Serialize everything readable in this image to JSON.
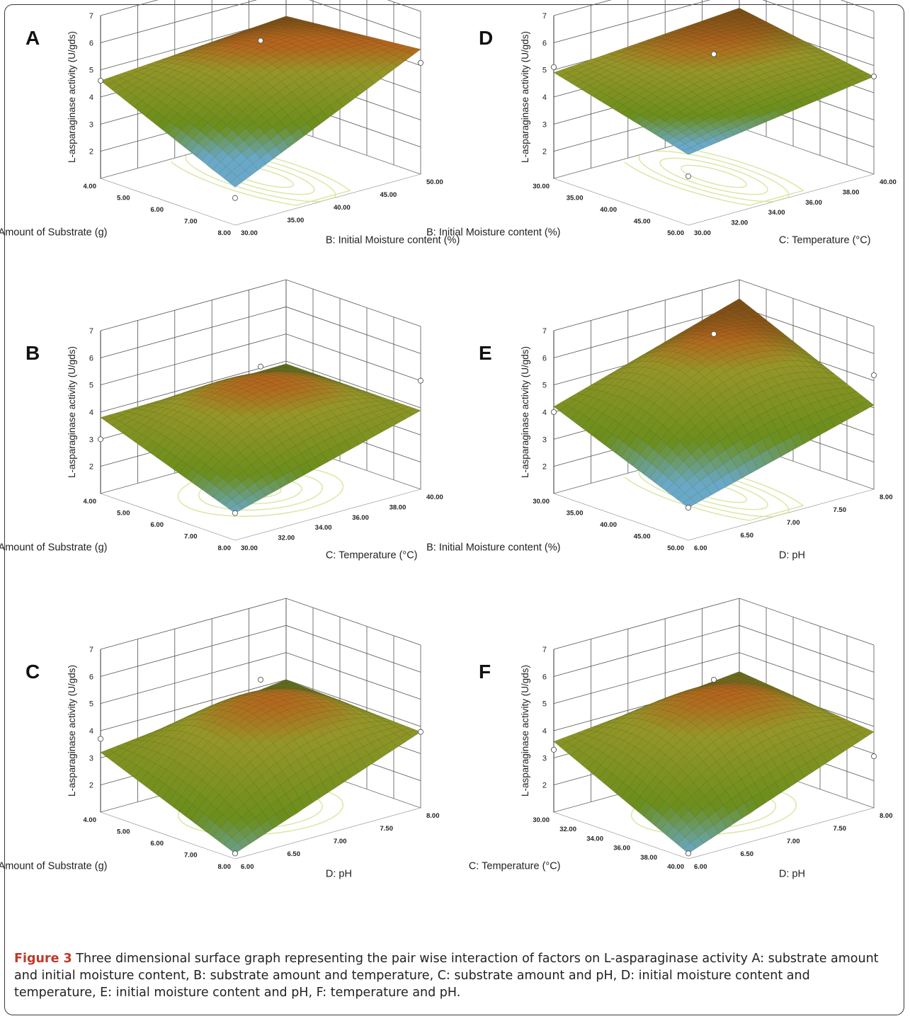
{
  "figure": {
    "caption_label": "Figure 3",
    "caption_text": "Three dimensional surface graph representing the pair wise interaction of factors on L-asparaginase activity A: substrate amount and initial moisture content, B: substrate amount and temperature, C: substrate amount and pH, D: initial moisture content and temperature, E: initial moisture content and pH, F: temperature and pH."
  },
  "colors": {
    "low": "#6aa8c8",
    "mid": "#6b8e1c",
    "high": "#b5651d",
    "dark": "#1c2a0c",
    "contour": "#d8e6a0"
  },
  "chart_data": [
    {
      "panel": "A",
      "type": "surface",
      "zlabel": "L-asparaginase activity (U/gds)",
      "zticks": [
        "2",
        "3",
        "4",
        "5",
        "6",
        "7"
      ],
      "zlim": [
        1,
        7
      ],
      "left_axis": {
        "label": "A: Amount of Substrate (g)",
        "ticks": [
          "4.00",
          "5.00",
          "6.00",
          "7.00",
          "8.00"
        ]
      },
      "right_axis": {
        "label": "B: Initial Moisture content (%)",
        "ticks": [
          "30.00",
          "35.00",
          "40.00",
          "45.00",
          "50.00"
        ]
      },
      "corner_values": [
        4.6,
        2.4,
        5.1,
        5.6
      ],
      "design_points": [
        4.6,
        2.0,
        6.0,
        5.1
      ],
      "color_bias": 0.25
    },
    {
      "panel": "B",
      "type": "surface",
      "zlabel": "L-asparaginase activity (U/gds)",
      "zticks": [
        "2",
        "3",
        "4",
        "5",
        "6",
        "7"
      ],
      "zlim": [
        1,
        7
      ],
      "left_axis": {
        "label": "A: Amount of Substrate (g)",
        "ticks": [
          "4.00",
          "5.00",
          "6.00",
          "7.00",
          "8.00"
        ]
      },
      "right_axis": {
        "label": "C: Temperature (°C)",
        "ticks": [
          "30.00",
          "32.00",
          "34.00",
          "36.00",
          "38.00",
          "40.00"
        ]
      },
      "corner_values": [
        3.8,
        2.0,
        3.9,
        3.9
      ],
      "design_points": [
        3.0,
        2.0,
        5.6,
        5.0
      ],
      "color_bias": 0.0
    },
    {
      "panel": "C",
      "type": "surface",
      "zlabel": "L-asparaginase activity (U/gds)",
      "zticks": [
        "2",
        "3",
        "4",
        "5",
        "6",
        "7"
      ],
      "zlim": [
        1,
        7
      ],
      "left_axis": {
        "label": "A: Amount of Substrate (g)",
        "ticks": [
          "4.00",
          "5.00",
          "6.00",
          "7.00",
          "8.00"
        ]
      },
      "right_axis": {
        "label": "D: pH",
        "ticks": [
          "6.00",
          "6.50",
          "7.00",
          "7.50",
          "8.00"
        ]
      },
      "corner_values": [
        3.2,
        1.2,
        4.0,
        3.8
      ],
      "design_points": [
        3.7,
        1.2,
        5.8,
        3.8
      ],
      "color_bias": -0.1
    },
    {
      "panel": "D",
      "type": "surface",
      "zlabel": "L-asparaginase activity (U/gds)",
      "zticks": [
        "2",
        "3",
        "4",
        "5",
        "6",
        "7"
      ],
      "zlim": [
        1,
        7
      ],
      "left_axis": {
        "label": "B: Initial Moisture content (%)",
        "ticks": [
          "30.00",
          "35.00",
          "40.00",
          "45.00",
          "50.00"
        ]
      },
      "right_axis": {
        "label": "C: Temperature (°C)",
        "ticks": [
          "30.00",
          "32.00",
          "34.00",
          "36.00",
          "38.00",
          "40.00"
        ]
      },
      "corner_values": [
        4.9,
        3.6,
        5.4,
        4.6
      ],
      "design_points": [
        5.1,
        2.8,
        5.5,
        4.6
      ],
      "color_bias": 0.1
    },
    {
      "panel": "E",
      "type": "surface",
      "zlabel": "L-asparaginase activity (U/gds)",
      "zticks": [
        "2",
        "3",
        "4",
        "5",
        "6",
        "7"
      ],
      "zlim": [
        1,
        7
      ],
      "left_axis": {
        "label": "B: Initial Moisture content (%)",
        "ticks": [
          "30.00",
          "35.00",
          "40.00",
          "45.00",
          "50.00"
        ]
      },
      "right_axis": {
        "label": "D: pH",
        "ticks": [
          "6.00",
          "6.50",
          "7.00",
          "7.50",
          "8.00"
        ]
      },
      "corner_values": [
        4.2,
        2.2,
        6.3,
        4.1
      ],
      "design_points": [
        4.0,
        2.2,
        6.8,
        5.2
      ],
      "color_bias": 0.15
    },
    {
      "panel": "F",
      "type": "surface",
      "zlabel": "L-asparaginase activity (U/gds)",
      "zticks": [
        "2",
        "3",
        "4",
        "5",
        "6",
        "7"
      ],
      "zlim": [
        1,
        7
      ],
      "left_axis": {
        "label": "C: Temperature (°C)",
        "ticks": [
          "30.00",
          "32.00",
          "34.00",
          "36.00",
          "38.00",
          "40.00"
        ]
      },
      "right_axis": {
        "label": "D: pH",
        "ticks": [
          "6.00",
          "6.50",
          "7.00",
          "7.50",
          "8.00"
        ]
      },
      "corner_values": [
        3.6,
        1.2,
        4.3,
        3.8
      ],
      "design_points": [
        3.3,
        1.2,
        5.8,
        2.9
      ],
      "color_bias": 0.0
    }
  ]
}
